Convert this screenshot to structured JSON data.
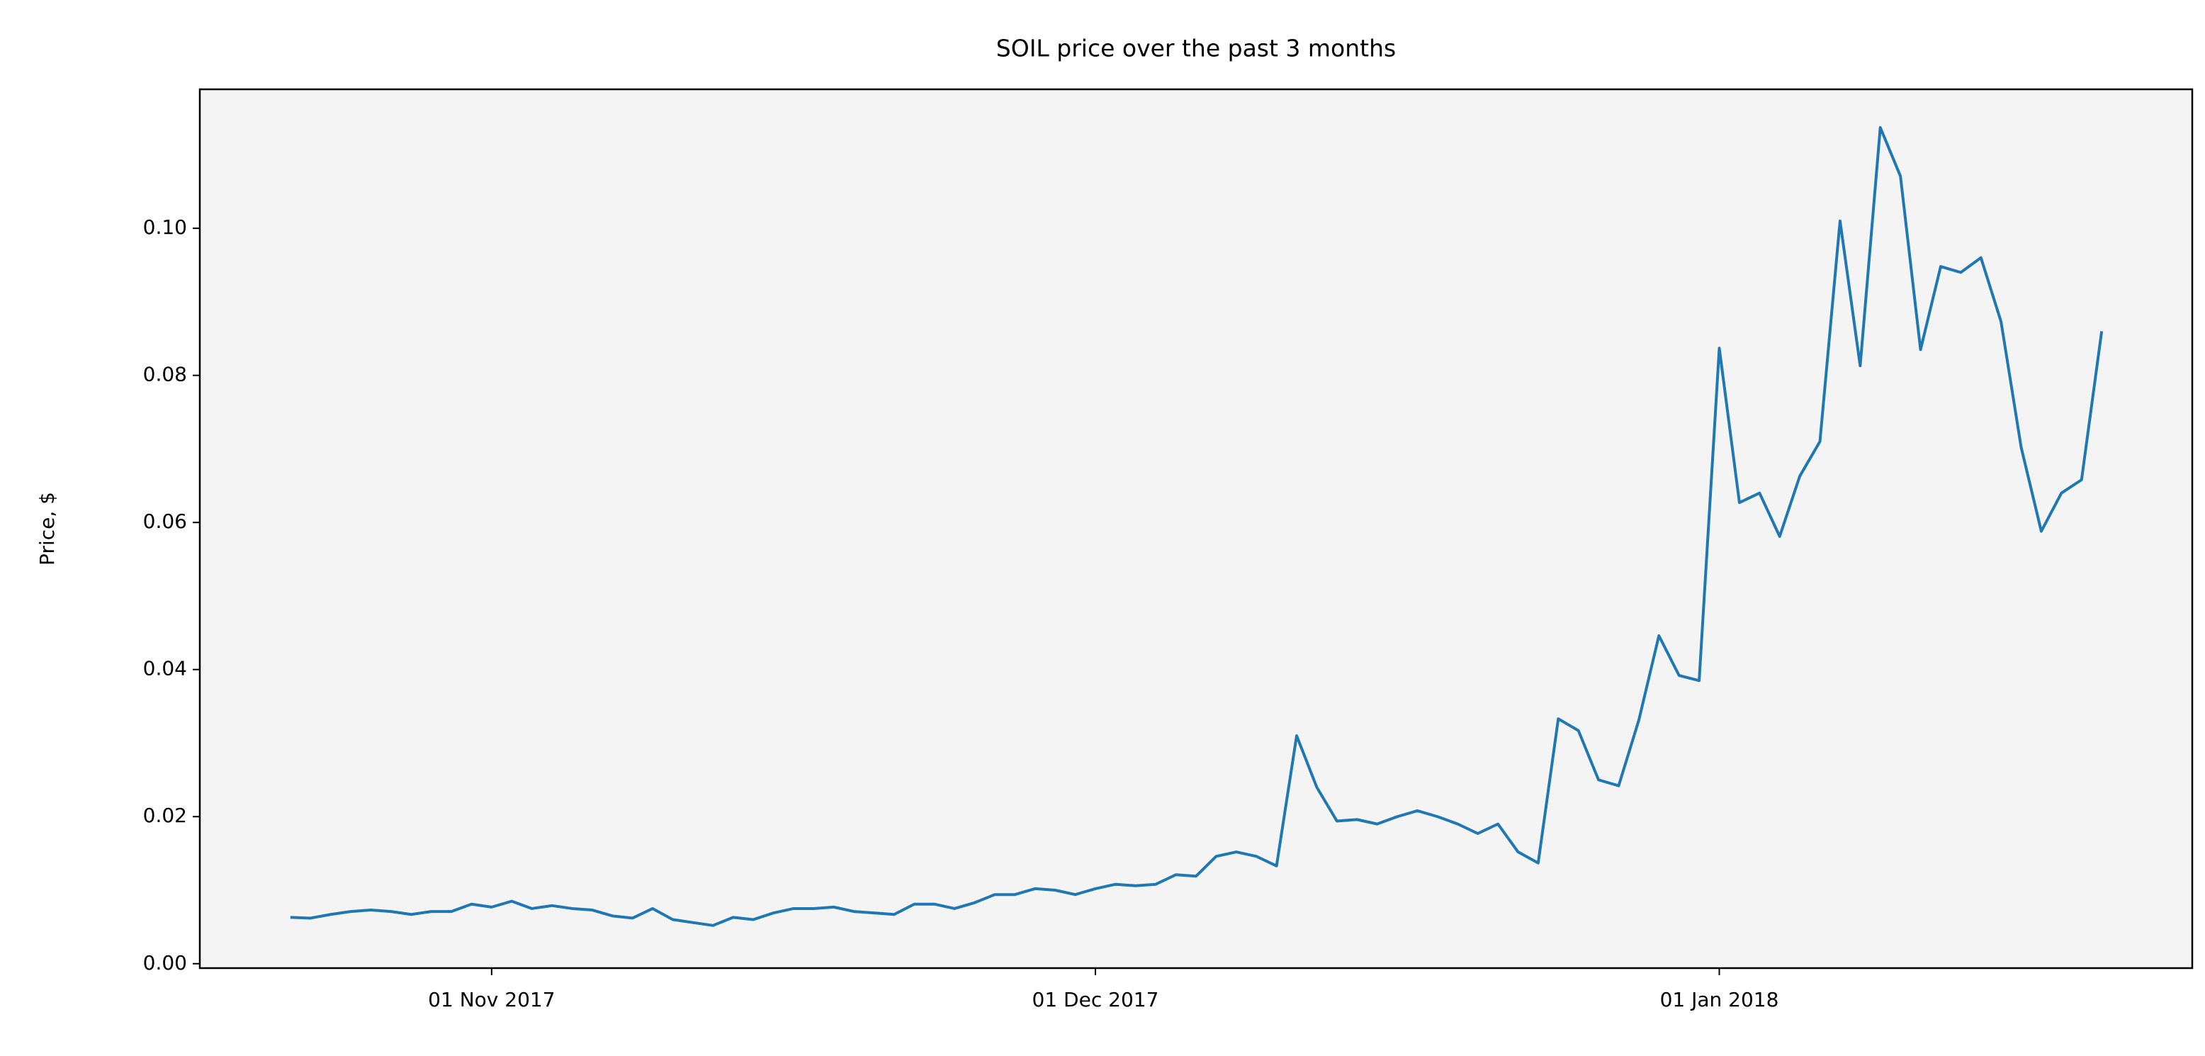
{
  "chart_data": {
    "type": "line",
    "title": "SOIL price over the past 3 months",
    "y_label": "Price, $",
    "color": "#1f77b4",
    "grid": false,
    "x": [
      "2017-10-22",
      "2017-10-23",
      "2017-10-24",
      "2017-10-25",
      "2017-10-26",
      "2017-10-27",
      "2017-10-28",
      "2017-10-29",
      "2017-10-30",
      "2017-10-31",
      "2017-11-01",
      "2017-11-02",
      "2017-11-03",
      "2017-11-04",
      "2017-11-05",
      "2017-11-06",
      "2017-11-07",
      "2017-11-08",
      "2017-11-09",
      "2017-11-10",
      "2017-11-11",
      "2017-11-12",
      "2017-11-13",
      "2017-11-14",
      "2017-11-15",
      "2017-11-16",
      "2017-11-17",
      "2017-11-18",
      "2017-11-19",
      "2017-11-20",
      "2017-11-21",
      "2017-11-22",
      "2017-11-23",
      "2017-11-24",
      "2017-11-25",
      "2017-11-26",
      "2017-11-27",
      "2017-11-28",
      "2017-11-29",
      "2017-11-30",
      "2017-12-01",
      "2017-12-02",
      "2017-12-03",
      "2017-12-04",
      "2017-12-05",
      "2017-12-06",
      "2017-12-07",
      "2017-12-08",
      "2017-12-09",
      "2017-12-10",
      "2017-12-11",
      "2017-12-12",
      "2017-12-13",
      "2017-12-14",
      "2017-12-15",
      "2017-12-16",
      "2017-12-17",
      "2017-12-18",
      "2017-12-19",
      "2017-12-20",
      "2017-12-21",
      "2017-12-22",
      "2017-12-23",
      "2017-12-24",
      "2017-12-25",
      "2017-12-26",
      "2017-12-27",
      "2017-12-28",
      "2017-12-29",
      "2017-12-30",
      "2017-12-31",
      "2018-01-01",
      "2018-01-02",
      "2018-01-03",
      "2018-01-04",
      "2018-01-05",
      "2018-01-06",
      "2018-01-07",
      "2018-01-08",
      "2018-01-09",
      "2018-01-10",
      "2018-01-11",
      "2018-01-12",
      "2018-01-13",
      "2018-01-14",
      "2018-01-15",
      "2018-01-16",
      "2018-01-17",
      "2018-01-18",
      "2018-01-19",
      "2018-01-20"
    ],
    "values": [
      0.0063,
      0.0062,
      0.0067,
      0.0071,
      0.0073,
      0.0071,
      0.0067,
      0.0071,
      0.0071,
      0.0081,
      0.0077,
      0.0085,
      0.0075,
      0.0079,
      0.0075,
      0.0073,
      0.0065,
      0.0062,
      0.0075,
      0.006,
      0.0056,
      0.0052,
      0.0063,
      0.006,
      0.0069,
      0.0075,
      0.0075,
      0.0077,
      0.0071,
      0.0069,
      0.0067,
      0.0081,
      0.0081,
      0.0075,
      0.0083,
      0.0094,
      0.0094,
      0.0102,
      0.01,
      0.0094,
      0.0102,
      0.0108,
      0.0106,
      0.0108,
      0.0121,
      0.0119,
      0.0146,
      0.0152,
      0.0146,
      0.0133,
      0.031,
      0.024,
      0.0194,
      0.0196,
      0.019,
      0.02,
      0.0208,
      0.02,
      0.019,
      0.0177,
      0.019,
      0.0152,
      0.0137,
      0.0333,
      0.0317,
      0.025,
      0.0242,
      0.0331,
      0.0446,
      0.0392,
      0.0385,
      0.0837,
      0.0627,
      0.064,
      0.0581,
      0.0663,
      0.071,
      0.101,
      0.0813,
      0.1137,
      0.1071,
      0.0835,
      0.0948,
      0.094,
      0.096,
      0.0873,
      0.0702,
      0.0588,
      0.064,
      0.0658,
      0.086
    ],
    "xlim": [
      "2017-10-17T12:00",
      "2018-01-24T12:00"
    ],
    "xticks": [
      {
        "value": "2017-11-01",
        "label": "01 Nov 2017"
      },
      {
        "value": "2017-12-01",
        "label": "01 Dec 2017"
      },
      {
        "value": "2018-01-01",
        "label": "01 Jan 2018"
      }
    ],
    "ylim": [
      -0.0006,
      0.1189
    ],
    "yticks": [
      {
        "value": 0,
        "label": "0.00"
      },
      {
        "value": 0.02,
        "label": "0.02"
      },
      {
        "value": 0.04,
        "label": "0.04"
      },
      {
        "value": 0.06,
        "label": "0.06"
      },
      {
        "value": 0.08,
        "label": "0.08"
      },
      {
        "value": 0.1,
        "label": "0.10"
      }
    ]
  }
}
